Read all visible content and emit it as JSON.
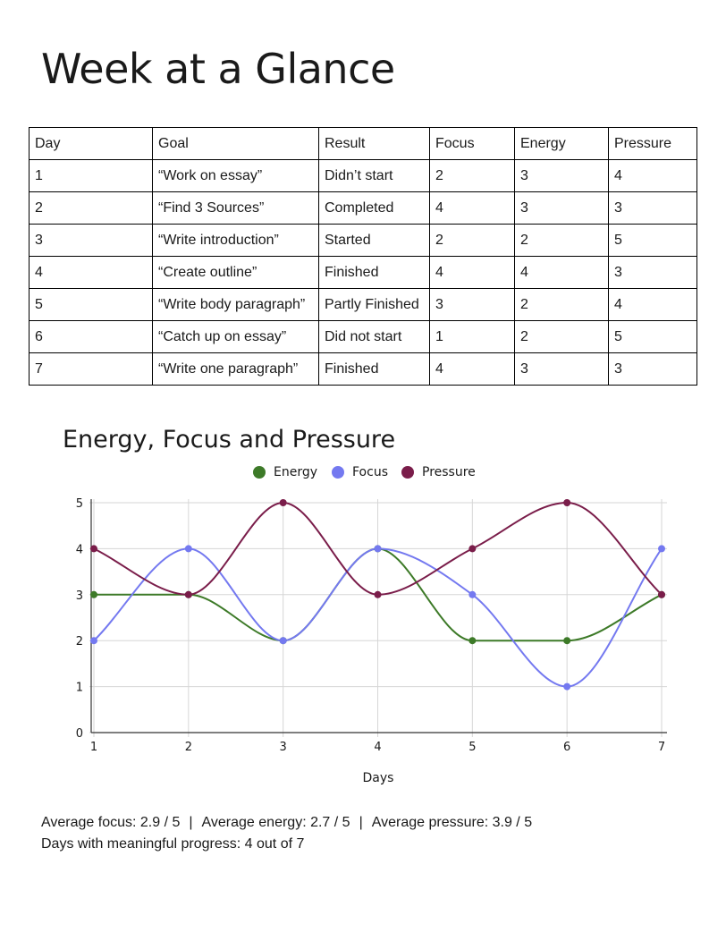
{
  "title": "Week at a Glance",
  "table": {
    "headers": [
      "Day",
      "Goal",
      "Result",
      "Focus",
      "Energy",
      "Pressure"
    ],
    "rows": [
      [
        "1",
        "“Work on essay”",
        "Didn’t start",
        "2",
        "3",
        "4"
      ],
      [
        "2",
        "“Find 3 Sources”",
        "Completed",
        "4",
        "3",
        "3"
      ],
      [
        "3",
        "“Write introduction”",
        "Started",
        "2",
        "2",
        "5"
      ],
      [
        "4",
        "“Create outline”",
        "Finished",
        "4",
        "4",
        "3"
      ],
      [
        "5",
        "“Write body paragraph”",
        "Partly Finished",
        "3",
        "2",
        "4"
      ],
      [
        "6",
        "“Catch up on essay”",
        "Did not start",
        "1",
        "2",
        "5"
      ],
      [
        "7",
        "“Write one paragraph”",
        "Finished",
        "4",
        "3",
        "3"
      ]
    ]
  },
  "chart_data": {
    "type": "line",
    "title": "Energy, Focus and Pressure",
    "xlabel": "Days",
    "ylabel": "",
    "x": [
      1,
      2,
      3,
      4,
      5,
      6,
      7
    ],
    "ylim": [
      0,
      5
    ],
    "yticks": [
      0,
      1,
      2,
      3,
      4,
      5
    ],
    "grid": true,
    "smooth": true,
    "legend_position": "top-center",
    "series": [
      {
        "name": "Energy",
        "color": "#3d7a28",
        "values": [
          3,
          3,
          2,
          4,
          2,
          2,
          3
        ]
      },
      {
        "name": "Focus",
        "color": "#7479f0",
        "values": [
          2,
          4,
          2,
          4,
          3,
          1,
          4
        ]
      },
      {
        "name": "Pressure",
        "color": "#7a1d4a",
        "values": [
          4,
          3,
          5,
          3,
          4,
          5,
          3
        ]
      }
    ]
  },
  "summary": {
    "avg_focus": "Average focus: 2.9 / 5",
    "avg_energy": "Average energy: 2.7 / 5",
    "avg_pressure": "Average pressure: 3.9 / 5",
    "separator": "|",
    "progress": "Days with meaningful progress: 4 out of 7"
  }
}
